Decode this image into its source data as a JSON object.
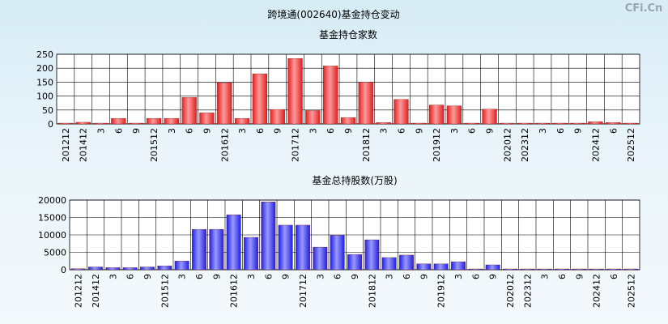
{
  "page_title": "跨境通(002640)基金持仓变动",
  "watermark": "CFi.Cn",
  "colors": {
    "bar_red": "#e02020",
    "bar_red_light": "#ff9a9a",
    "bar_blue": "#2020e0",
    "bar_blue_light": "#9a9aff"
  },
  "chart_data": [
    {
      "type": "bar",
      "title": "基金持仓家数",
      "xlabel": "",
      "ylabel": "",
      "ylim": [
        0,
        250
      ],
      "yticks": [
        0,
        50,
        100,
        150,
        200,
        250
      ],
      "grid": true,
      "categories": [
        "201212",
        "201412",
        "3",
        "6",
        "9",
        "201512",
        "3",
        "6",
        "9",
        "201612",
        "3",
        "6",
        "9",
        "201712",
        "3",
        "6",
        "9",
        "201812",
        "3",
        "6",
        "9",
        "201912",
        "3",
        "6",
        "9",
        "202012",
        "202312",
        "3",
        "6",
        "9",
        "202412",
        "6",
        "202512"
      ],
      "values": [
        2,
        6,
        2,
        20,
        2,
        20,
        20,
        95,
        40,
        148,
        20,
        180,
        52,
        235,
        48,
        208,
        23,
        150,
        5,
        88,
        2,
        68,
        65,
        2,
        53,
        2,
        2,
        2,
        2,
        2,
        8,
        5,
        2
      ]
    },
    {
      "type": "bar",
      "title": "基金总持股数(万股)",
      "xlabel": "",
      "ylabel": "",
      "ylim": [
        0,
        20000
      ],
      "yticks": [
        0,
        5000,
        10000,
        15000,
        20000
      ],
      "grid": true,
      "categories": [
        "201212",
        "201412",
        "3",
        "6",
        "9",
        "201512",
        "3",
        "6",
        "9",
        "201612",
        "3",
        "6",
        "9",
        "201712",
        "3",
        "6",
        "9",
        "201812",
        "3",
        "6",
        "9",
        "201912",
        "3",
        "6",
        "9",
        "202012",
        "202312",
        "3",
        "6",
        "9",
        "202412",
        "6",
        "202512"
      ],
      "values": [
        300,
        800,
        600,
        600,
        800,
        1100,
        2500,
        11600,
        11600,
        15800,
        9300,
        19500,
        12800,
        12800,
        6500,
        9900,
        4400,
        8600,
        3500,
        4200,
        1700,
        1700,
        2300,
        100,
        1400,
        200,
        200,
        200,
        200,
        200,
        200,
        200,
        200
      ]
    }
  ]
}
